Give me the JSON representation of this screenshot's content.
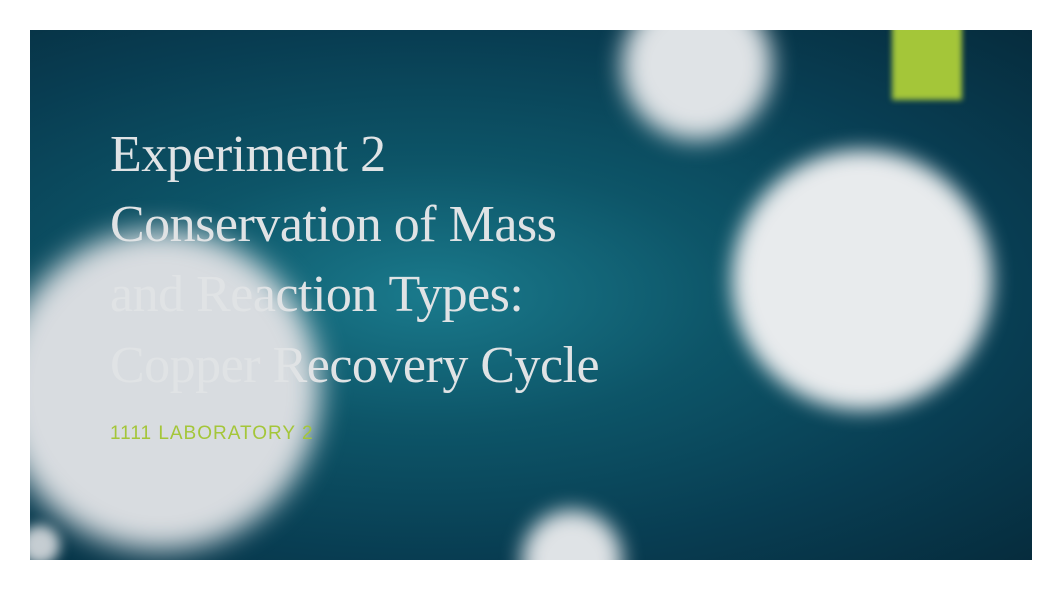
{
  "slide": {
    "title_line1": "Experiment 2",
    "title_line2": "Conservation of Mass",
    "title_line3": "and Reaction Types:",
    "title_line4": "Copper Recovery Cycle",
    "subtitle": "1111 LABORATORY 2",
    "background_gradient_center": "#1a7a8c",
    "background_gradient_mid": "#0d5568",
    "background_gradient_outer": "#083d52",
    "accent_color": "#a4c639",
    "title_color": "#e0e3e5",
    "circle_color": "#e8ebed",
    "title_fontsize": 52,
    "subtitle_fontsize": 19
  }
}
